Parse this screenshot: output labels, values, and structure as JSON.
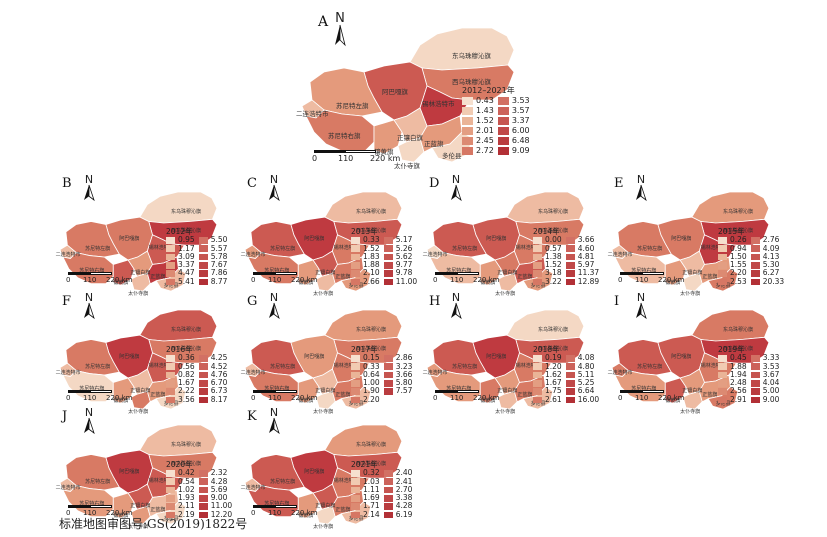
{
  "palette": [
    "#f4d8c4",
    "#eebba2",
    "#e49a7c",
    "#d87a64",
    "#cc5a52",
    "#bf3a40"
  ],
  "region_names": [
    "东乌珠穆沁旗",
    "西乌珠穆沁旗",
    "阿巴嘎旗",
    "锡林浩特市",
    "苏尼特左旗",
    "二连浩特市",
    "苏尼特右旗",
    "镶黄旗",
    "正镶白旗",
    "太仆寺旗",
    "正蓝旗",
    "多伦县"
  ],
  "footer": "标准地图审图号:GS(2019)1822号",
  "panels": [
    {
      "label": "A",
      "legend_title": "2012–2021年",
      "left": [
        "0.43",
        "1.43",
        "1.52",
        "2.01",
        "2.45",
        "2.72"
      ],
      "right": [
        "3.53",
        "3.57",
        "3.37",
        "6.00",
        "6.48",
        "9.09"
      ],
      "classes": [
        0,
        3,
        4,
        5,
        2,
        1,
        3,
        2,
        1,
        0,
        2,
        0
      ]
    },
    {
      "label": "B",
      "legend_title": "2012年",
      "left": [
        "0.95",
        "1.17",
        "3.09",
        "3.37",
        "4.47",
        "5.41"
      ],
      "right": [
        "5.50",
        "5.57",
        "5.78",
        "7.67",
        "7.86",
        "8.77"
      ],
      "classes": [
        0,
        5,
        3,
        4,
        3,
        1,
        3,
        4,
        2,
        1,
        5,
        1
      ]
    },
    {
      "label": "C",
      "legend_title": "2013年",
      "left": [
        "0.33",
        "1.52",
        "1.83",
        "1.88",
        "2.10",
        "2.66"
      ],
      "right": [
        "5.17",
        "5.26",
        "5.62",
        "9.77",
        "9.78",
        "11.00"
      ],
      "classes": [
        1,
        4,
        5,
        3,
        4,
        2,
        3,
        2,
        4,
        1,
        3,
        2
      ]
    },
    {
      "label": "D",
      "legend_title": "2014年",
      "left": [
        "0.00",
        "0.57",
        "1.38",
        "1.52",
        "3.18",
        "3.22"
      ],
      "right": [
        "3.66",
        "4.60",
        "4.81",
        "5.97",
        "11.37",
        "12.89"
      ],
      "classes": [
        1,
        3,
        4,
        3,
        4,
        0,
        1,
        2,
        3,
        1,
        4,
        2
      ]
    },
    {
      "label": "E",
      "legend_title": "2015年",
      "left": [
        "0.26",
        "0.94",
        "1.50",
        "1.55",
        "2.20",
        "2.53"
      ],
      "right": [
        "2.76",
        "4.09",
        "4.13",
        "5.30",
        "6.27",
        "20.33"
      ],
      "classes": [
        2,
        5,
        3,
        5,
        3,
        1,
        1,
        2,
        1,
        0,
        2,
        3
      ]
    },
    {
      "label": "F",
      "legend_title": "2016年",
      "left": [
        "0.36",
        "0.56",
        "0.82",
        "1.67",
        "2.22",
        "3.56"
      ],
      "right": [
        "4.25",
        "4.52",
        "4.76",
        "6.70",
        "6.73",
        "8.17"
      ],
      "classes": [
        4,
        3,
        5,
        4,
        3,
        1,
        0,
        2,
        1,
        3,
        2,
        0
      ]
    },
    {
      "label": "G",
      "legend_title": "2017年",
      "left": [
        "0.15",
        "0.33",
        "0.64",
        "1.00",
        "1.90",
        "2.20"
      ],
      "right": [
        "2.86",
        "3.23",
        "3.66",
        "5.80",
        "7.57",
        ""
      ],
      "classes": [
        2,
        3,
        2,
        3,
        4,
        1,
        3,
        2,
        1,
        0,
        3,
        1
      ]
    },
    {
      "label": "H",
      "legend_title": "2018年",
      "left": [
        "0.19",
        "1.20",
        "1.62",
        "1.67",
        "1.75",
        "2.61"
      ],
      "right": [
        "4.08",
        "4.80",
        "5.11",
        "5.25",
        "6.64",
        "16.00"
      ],
      "classes": [
        0,
        4,
        5,
        3,
        4,
        2,
        2,
        3,
        2,
        1,
        3,
        1
      ]
    },
    {
      "label": "I",
      "legend_title": "2019年",
      "left": [
        "0.45",
        "1.88",
        "1.94",
        "2.48",
        "2.56",
        "2.91"
      ],
      "right": [
        "3.33",
        "3.53",
        "3.67",
        "4.04",
        "5.00",
        "9.00"
      ],
      "classes": [
        3,
        5,
        4,
        3,
        4,
        3,
        2,
        4,
        2,
        1,
        2,
        3
      ]
    },
    {
      "label": "J",
      "legend_title": "2020年",
      "left": [
        "0.42",
        "0.54",
        "1.02",
        "1.93",
        "2.11",
        "2.19"
      ],
      "right": [
        "2.32",
        "4.28",
        "5.69",
        "9.00",
        "11.00",
        "12.20"
      ],
      "classes": [
        1,
        3,
        5,
        4,
        3,
        1,
        2,
        2,
        4,
        2,
        1,
        0
      ]
    },
    {
      "label": "K",
      "legend_title": "2021年",
      "left": [
        "0.32",
        "1.03",
        "1.11",
        "1.69",
        "1.71",
        "2.14"
      ],
      "right": [
        "2.40",
        "2.41",
        "2.70",
        "3.38",
        "4.28",
        "6.19"
      ],
      "classes": [
        2,
        4,
        5,
        3,
        4,
        1,
        4,
        2,
        4,
        0,
        3,
        1
      ]
    }
  ],
  "scale": {
    "zero": "0",
    "mid": "110",
    "end": "220 km"
  },
  "north": "N"
}
